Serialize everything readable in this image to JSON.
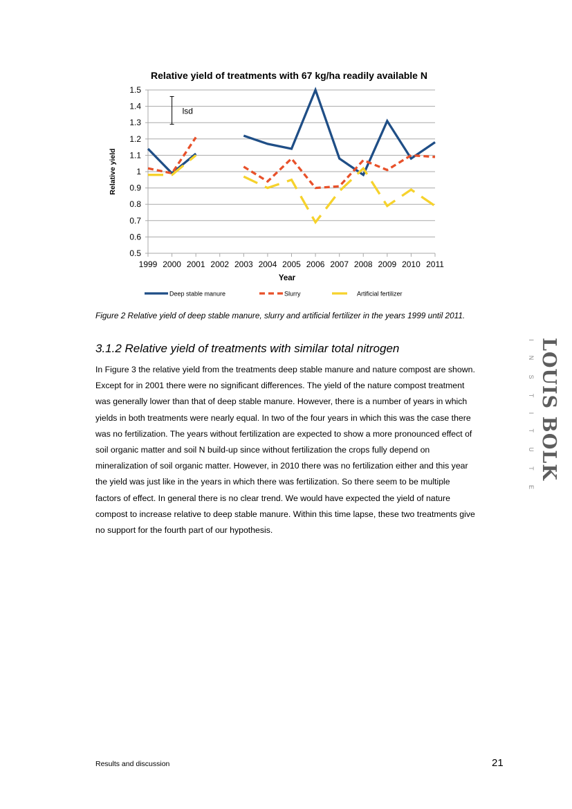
{
  "chart_data": {
    "type": "line",
    "title": "Relative yield of treatments with 67 kg/ha readily available N",
    "xlabel": "Year",
    "ylabel": "Relative yield",
    "categories": [
      "1999",
      "2000",
      "2001",
      "2002",
      "2003",
      "2004",
      "2005",
      "2006",
      "2007",
      "2008",
      "2009",
      "2010",
      "2011"
    ],
    "ylim": [
      0.5,
      1.5
    ],
    "yticks": [
      "0.5",
      "0.6",
      "0.7",
      "0.8",
      "0.9",
      "1",
      "1.1",
      "1.2",
      "1.3",
      "1.4",
      "1.5"
    ],
    "grid": true,
    "legend_position": "bottom",
    "series": [
      {
        "name": "Deep stable manure",
        "color": "#1f4e86",
        "dash": "solid",
        "values": [
          1.14,
          0.99,
          1.11,
          null,
          1.22,
          1.17,
          1.14,
          1.5,
          1.08,
          0.98,
          1.31,
          1.08,
          1.18
        ]
      },
      {
        "name": "Slurry",
        "color": "#e8512a",
        "dash": "dashed",
        "values": [
          1.02,
          0.99,
          1.21,
          null,
          1.03,
          0.94,
          1.08,
          0.9,
          0.91,
          1.07,
          1.01,
          1.1,
          1.09
        ]
      },
      {
        "name": "Artificial fertilizer",
        "color": "#f6d22c",
        "dash": "longdash",
        "values": [
          0.98,
          0.98,
          1.1,
          null,
          0.97,
          0.9,
          0.95,
          0.69,
          0.88,
          1.02,
          0.79,
          0.89,
          0.79
        ]
      }
    ],
    "annotations": [
      {
        "label": "lsd",
        "x": "2000",
        "y_low": 1.29,
        "y_high": 1.46
      }
    ]
  },
  "figure": {
    "caption": "Figure 2 Relative yield of deep stable manure, slurry and artificial fertilizer in the years 1999 until 2011."
  },
  "section": {
    "heading": "3.1.2 Relative yield of treatments with similar total nitrogen",
    "lines": [
      "In Figure 3 the relative yield from the treatments deep stable manure and nature compost are shown.",
      "Except for in 2001 there were no significant differences. The yield of the nature compost treatment",
      "was generally lower than that of deep stable manure. However, there is a number of years in which",
      "yields in both treatments were nearly equal. In two of the four years in which this was the case there",
      "was no fertilization. The years without fertilization are expected to show a more pronounced effect of",
      "soil organic matter and soil N build-up since without fertilization the crops fully depend on",
      "mineralization of soil organic matter. However, in 2010 there was no fertilization either and this year",
      "the yield was just like in the years in which there was fertilization. So there seem to be multiple",
      "factors of effect. In general there is no clear trend. We would have expected the yield of nature",
      "compost to increase relative to deep stable manure. Within this time lapse, these two treatments give",
      "no support for the fourth part of our hypothesis."
    ]
  },
  "logo": {
    "main": "LOUIS BOLK",
    "sub": "INSTITUTE"
  },
  "footer": {
    "section_name": "Results and discussion",
    "page_number": "21"
  }
}
